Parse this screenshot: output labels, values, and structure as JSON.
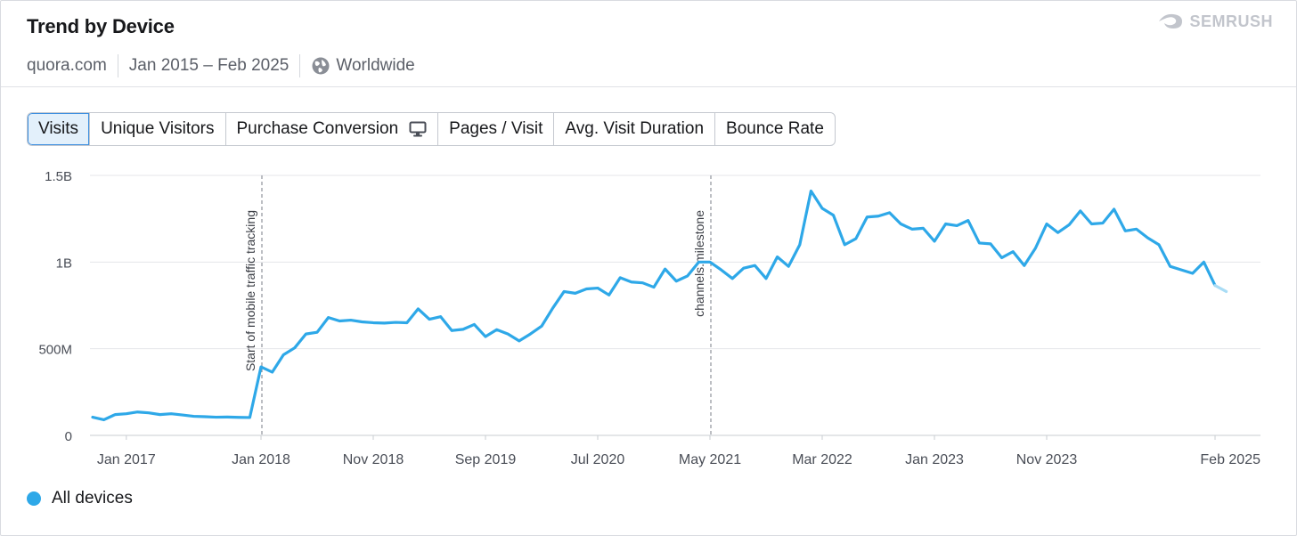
{
  "header": {
    "title": "Trend by Device",
    "domain": "quora.com",
    "date_range": "Jan 2015 – Feb 2025",
    "region": "Worldwide",
    "logo_text": "SEMRUSH"
  },
  "tabs": [
    {
      "label": "Visits",
      "active": true
    },
    {
      "label": "Unique Visitors",
      "active": false
    },
    {
      "label": "Purchase Conversion",
      "active": false,
      "icon": "monitor-icon"
    },
    {
      "label": "Pages / Visit",
      "active": false
    },
    {
      "label": "Avg. Visit Duration",
      "active": false
    },
    {
      "label": "Bounce Rate",
      "active": false
    }
  ],
  "legend": {
    "label": "All devices",
    "color": "#2ea8e8"
  },
  "chart_data": {
    "type": "line",
    "y_ticks": [
      {
        "value": 0,
        "label": "0"
      },
      {
        "value": 500000000,
        "label": "500M"
      },
      {
        "value": 1000000000,
        "label": "1B"
      },
      {
        "value": 1500000000,
        "label": "1.5B"
      }
    ],
    "ylim": [
      0,
      1500000000
    ],
    "x_start": "Oct 2016",
    "x_ticks": [
      {
        "index": 3,
        "label": "Jan 2017"
      },
      {
        "index": 15,
        "label": "Jan 2018"
      },
      {
        "index": 25,
        "label": "Nov 2018"
      },
      {
        "index": 35,
        "label": "Sep 2019"
      },
      {
        "index": 45,
        "label": "Jul 2020"
      },
      {
        "index": 55,
        "label": "May 2021"
      },
      {
        "index": 65,
        "label": "Mar 2022"
      },
      {
        "index": 75,
        "label": "Jan 2023"
      },
      {
        "index": 85,
        "label": "Nov 2023"
      },
      {
        "index": 100,
        "label": "Feb 2025"
      }
    ],
    "annotations": [
      {
        "index": 15,
        "text": "Start of mobile traffic tracking"
      },
      {
        "index": 55,
        "text": "channels.milestone"
      }
    ],
    "series": [
      {
        "name": "All devices",
        "color": "#2ea8e8",
        "projected_last": true,
        "values": [
          105000000,
          90000000,
          120000000,
          125000000,
          135000000,
          130000000,
          120000000,
          125000000,
          118000000,
          110000000,
          108000000,
          105000000,
          106000000,
          104000000,
          103000000,
          395000000,
          365000000,
          465000000,
          505000000,
          585000000,
          595000000,
          680000000,
          660000000,
          665000000,
          655000000,
          650000000,
          648000000,
          652000000,
          650000000,
          730000000,
          670000000,
          685000000,
          605000000,
          612000000,
          640000000,
          570000000,
          610000000,
          585000000,
          545000000,
          585000000,
          630000000,
          735000000,
          830000000,
          820000000,
          845000000,
          850000000,
          810000000,
          910000000,
          885000000,
          880000000,
          855000000,
          960000000,
          890000000,
          920000000,
          1000000000,
          1000000000,
          955000000,
          905000000,
          965000000,
          980000000,
          905000000,
          1030000000,
          975000000,
          1100000000,
          1410000000,
          1310000000,
          1270000000,
          1100000000,
          1135000000,
          1260000000,
          1265000000,
          1285000000,
          1220000000,
          1190000000,
          1195000000,
          1120000000,
          1220000000,
          1210000000,
          1240000000,
          1110000000,
          1105000000,
          1025000000,
          1060000000,
          980000000,
          1080000000,
          1220000000,
          1170000000,
          1215000000,
          1295000000,
          1220000000,
          1225000000,
          1305000000,
          1180000000,
          1190000000,
          1140000000,
          1100000000,
          975000000,
          955000000,
          935000000,
          1000000000,
          865000000,
          830000000
        ]
      }
    ]
  }
}
